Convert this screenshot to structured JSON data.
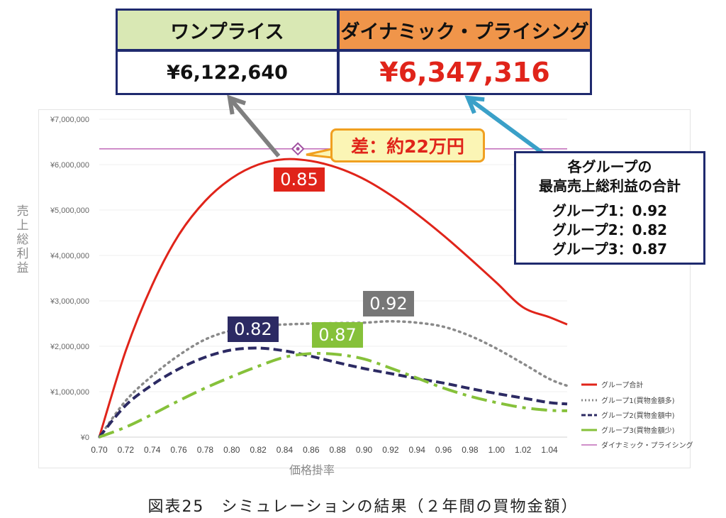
{
  "summary": {
    "one_price_label": "ワンプライス",
    "one_price_value": "¥6,122,640",
    "dynamic_label": "ダイナミック・プライシング",
    "dynamic_value": "¥6,347,316"
  },
  "callout_diff": "差：約22万円",
  "group_note": {
    "line1": "各グループの",
    "line2": "最高売上総利益の合計",
    "g1": "グループ1：0.92",
    "g2": "グループ2：0.82",
    "g3": "グループ3：0.87"
  },
  "tags": {
    "total": "0.85",
    "g1": "0.92",
    "g2": "0.82",
    "g3": "0.87"
  },
  "caption": "図表25　シミュレーションの結果（２年間の買物金額）",
  "colors": {
    "total": "#e0241a",
    "g1": "#8a8a8a",
    "g2": "#2c2a63",
    "g3": "#86c13a",
    "dynamic": "#c06ab8"
  },
  "chart_data": {
    "type": "line",
    "xlabel": "価格掛率",
    "ylabel": "売上総利益",
    "xlim": [
      0.7,
      1.05
    ],
    "ylim": [
      0,
      7000000
    ],
    "x_ticks": [
      "0.70",
      "0.72",
      "0.74",
      "0.76",
      "0.78",
      "0.80",
      "0.82",
      "0.84",
      "0.86",
      "0.88",
      "0.90",
      "0.92",
      "0.94",
      "0.96",
      "0.98",
      "1.00",
      "1.02",
      "1.04"
    ],
    "y_ticks": [
      "¥0",
      "¥1,000,000",
      "¥2,000,000",
      "¥3,000,000",
      "¥4,000,000",
      "¥5,000,000",
      "¥6,000,000",
      "¥7,000,000"
    ],
    "legend_position": "right",
    "x": [
      0.7,
      0.72,
      0.74,
      0.76,
      0.78,
      0.8,
      0.82,
      0.84,
      0.86,
      0.88,
      0.9,
      0.92,
      0.94,
      0.96,
      0.98,
      1.0,
      1.02,
      1.04,
      1.05
    ],
    "series": [
      {
        "name": "グループ合計",
        "style": "solid",
        "values": [
          0,
          1900000,
          3350000,
          4450000,
          5200000,
          5700000,
          6000000,
          6120000,
          6080000,
          5930000,
          5680000,
          5330000,
          4910000,
          4440000,
          3930000,
          3400000,
          2860000,
          2640000,
          2480000
        ]
      },
      {
        "name": "グループ1(買物金額多)",
        "style": "dotted",
        "values": [
          0,
          800000,
          1350000,
          1800000,
          2150000,
          2350000,
          2450000,
          2480000,
          2500000,
          2510000,
          2520000,
          2550000,
          2520000,
          2430000,
          2230000,
          1950000,
          1620000,
          1280000,
          1130000
        ]
      },
      {
        "name": "グループ2(買物金額中)",
        "style": "dashed",
        "values": [
          0,
          700000,
          1150000,
          1500000,
          1760000,
          1920000,
          1960000,
          1900000,
          1780000,
          1640000,
          1510000,
          1400000,
          1290000,
          1190000,
          1070000,
          960000,
          860000,
          760000,
          730000
        ]
      },
      {
        "name": "グループ3(買物金額少)",
        "style": "dashdot",
        "values": [
          0,
          220000,
          500000,
          800000,
          1080000,
          1330000,
          1560000,
          1760000,
          1840000,
          1820000,
          1720000,
          1520000,
          1300000,
          1080000,
          900000,
          760000,
          650000,
          590000,
          580000
        ]
      },
      {
        "name": "ダイナミック・プライシング",
        "style": "hline",
        "values": [
          6347316,
          6347316,
          6347316,
          6347316,
          6347316,
          6347316,
          6347316,
          6347316,
          6347316,
          6347316,
          6347316,
          6347316,
          6347316,
          6347316,
          6347316,
          6347316,
          6347316,
          6347316,
          6347316
        ]
      }
    ]
  }
}
